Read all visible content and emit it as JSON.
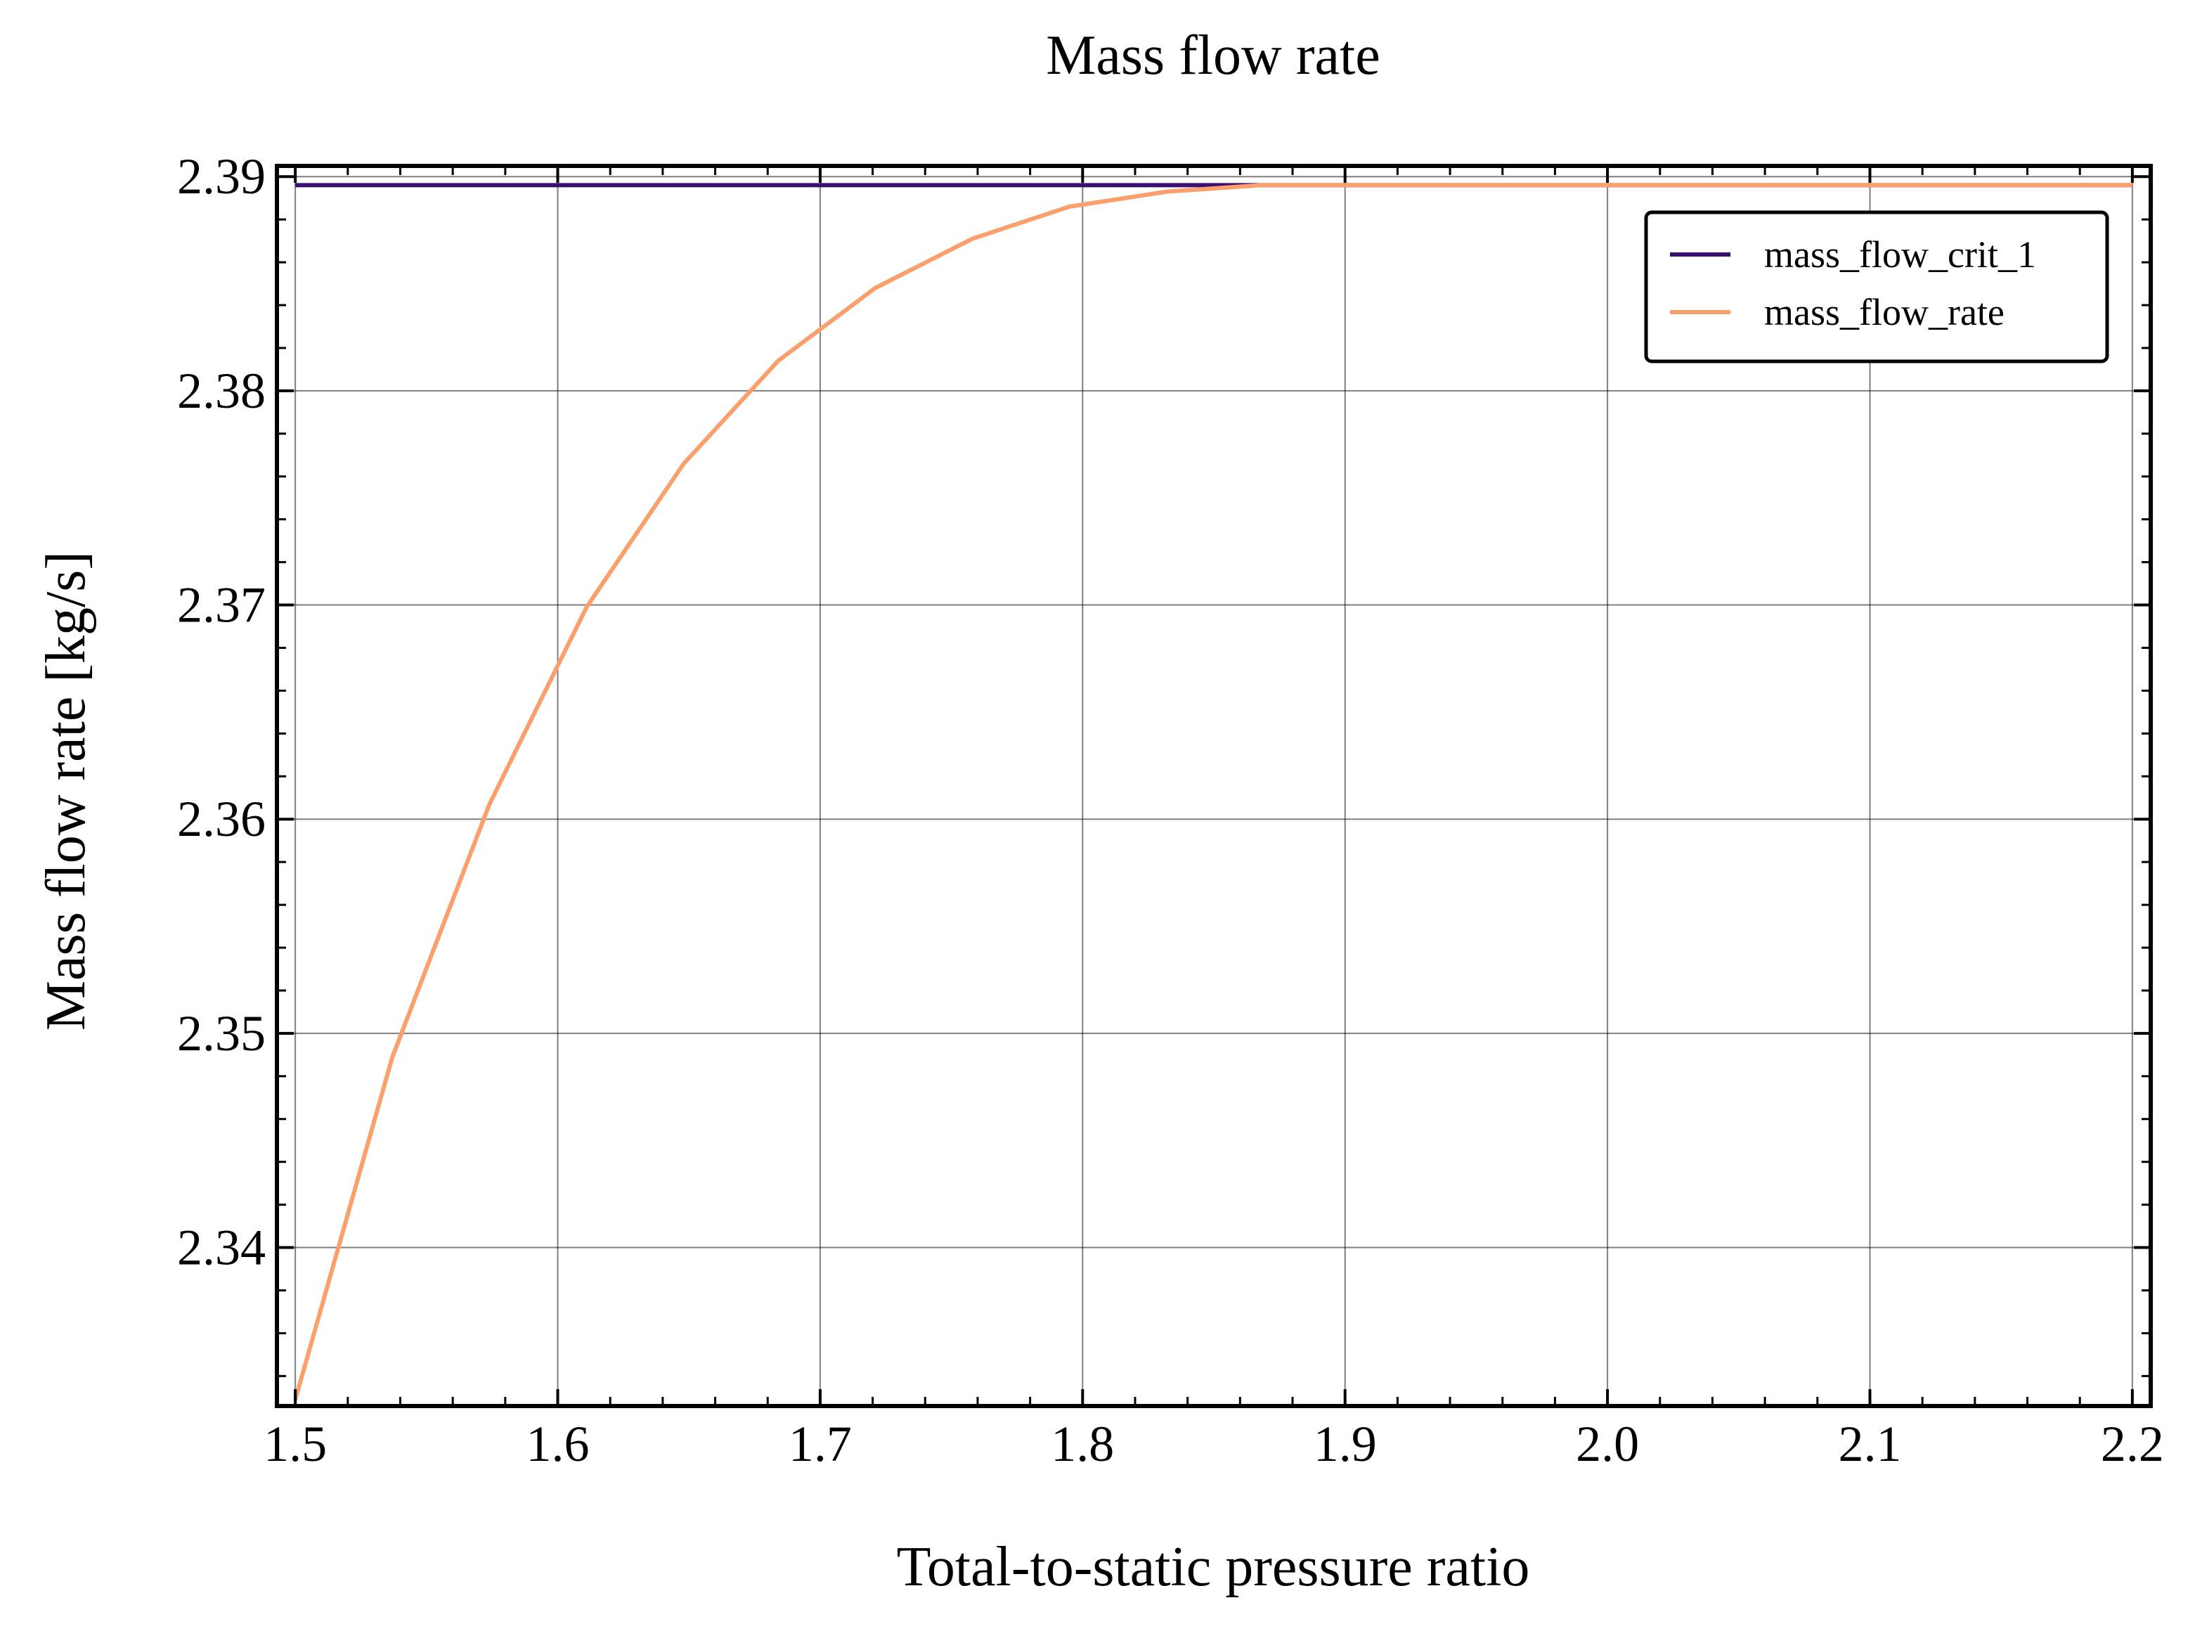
{
  "chart_data": {
    "type": "line",
    "title": "Mass flow rate",
    "xlabel": "Total-to-static pressure ratio",
    "ylabel": "Mass flow rate [kg/s]",
    "xlim": [
      1.493,
      2.207
    ],
    "ylim": [
      2.3326,
      2.3905
    ],
    "x_ticks": [
      1.5,
      1.6,
      1.7,
      1.8,
      1.9,
      2.0,
      2.1,
      2.2
    ],
    "x_tick_labels": [
      "1.5",
      "1.6",
      "1.7",
      "1.8",
      "1.9",
      "2.0",
      "2.1",
      "2.2"
    ],
    "y_ticks": [
      2.34,
      2.35,
      2.36,
      2.37,
      2.38,
      2.39
    ],
    "y_tick_labels": [
      "2.34",
      "2.35",
      "2.36",
      "2.37",
      "2.38",
      "2.39"
    ],
    "grid": true,
    "legend_position": "top-right",
    "series": [
      {
        "name": "mass_flow_crit_1",
        "color": "#3b0f70",
        "x": [
          1.5,
          2.2
        ],
        "y": [
          2.3896,
          2.3896
        ]
      },
      {
        "name": "mass_flow_rate",
        "color": "#fb9f6c",
        "x": [
          1.5,
          1.537,
          1.574,
          1.611,
          1.648,
          1.684,
          1.721,
          1.758,
          1.795,
          1.832,
          1.868,
          1.905,
          1.942,
          1.979,
          2.016,
          2.053,
          2.089,
          2.126,
          2.163,
          2.2
        ],
        "y": [
          2.3329,
          2.3489,
          2.3607,
          2.3699,
          2.3766,
          2.3814,
          2.3848,
          2.3871,
          2.3886,
          2.3893,
          2.3896,
          2.3896,
          2.3896,
          2.3896,
          2.3896,
          2.3896,
          2.3896,
          2.3896,
          2.3896,
          2.3896
        ]
      }
    ]
  }
}
